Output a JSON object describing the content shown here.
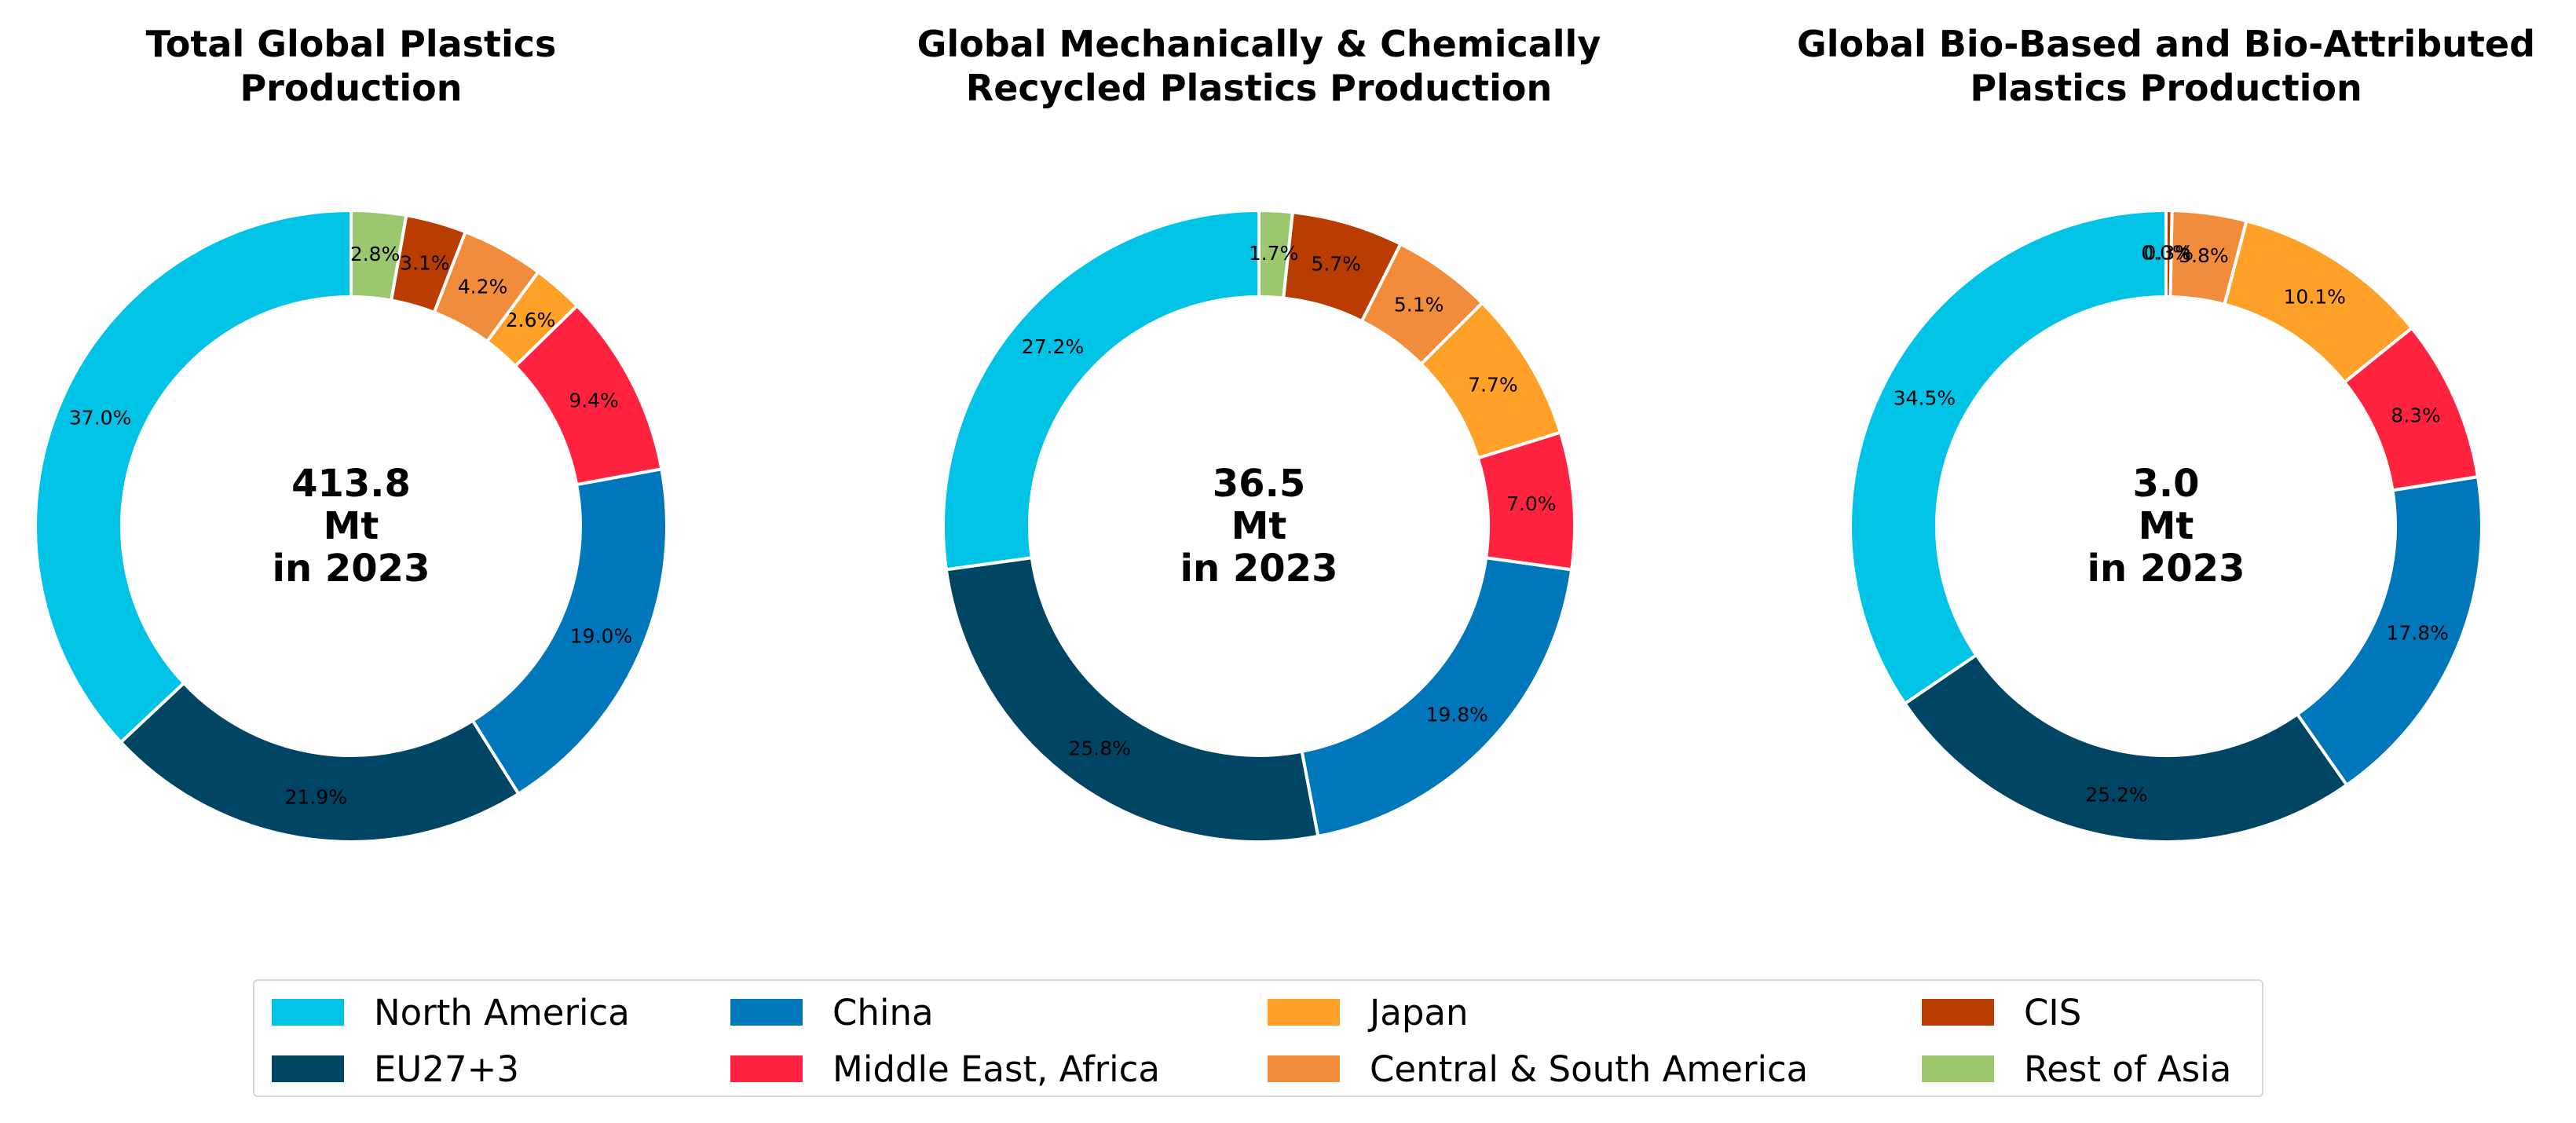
{
  "regions": [
    {
      "name": "North America",
      "color": "#00C3E6"
    },
    {
      "name": "EU27+3",
      "color": "#004563"
    },
    {
      "name": "China",
      "color": "#0077BB"
    },
    {
      "name": "Middle East, Africa",
      "color": "#FF2340"
    },
    {
      "name": "Japan",
      "color": "#FFA028"
    },
    {
      "name": "Central & South America",
      "color": "#F08C3C"
    },
    {
      "name": "CIS",
      "color": "#B93C00"
    },
    {
      "name": "Rest of Asia",
      "color": "#9BC86E"
    }
  ],
  "chart_data": [
    {
      "type": "pie",
      "title": "Total Global Plastics Production",
      "title_lines": [
        "Total Global Plastics",
        "Production"
      ],
      "center_lines": [
        "413.8",
        "Mt",
        "in 2023"
      ],
      "labels": [
        "North America",
        "EU27+3",
        "China",
        "Middle East, Africa",
        "Japan",
        "Central & South America",
        "CIS",
        "Rest of Asia"
      ],
      "values": [
        37.0,
        21.9,
        19.0,
        9.4,
        2.6,
        4.2,
        3.1,
        2.8
      ],
      "value_labels": [
        "37.0%",
        "21.9%",
        "19.0%",
        "9.4%",
        "2.6%",
        "4.2%",
        "3.1%",
        "2.8%"
      ]
    },
    {
      "type": "pie",
      "title": "Global Mechanically & Chemically Recycled Plastics Production",
      "title_lines": [
        "Global Mechanically & Chemically",
        "Recycled Plastics Production"
      ],
      "center_lines": [
        "36.5",
        "Mt",
        "in 2023"
      ],
      "labels": [
        "North America",
        "EU27+3",
        "China",
        "Middle East, Africa",
        "Japan",
        "Central & South America",
        "CIS",
        "Rest of Asia"
      ],
      "values": [
        27.2,
        25.8,
        19.8,
        7.0,
        7.7,
        5.1,
        5.7,
        1.7
      ],
      "value_labels": [
        "27.2%",
        "25.8%",
        "19.8%",
        "7.0%",
        "7.7%",
        "5.1%",
        "5.7%",
        "1.7%"
      ]
    },
    {
      "type": "pie",
      "title": "Global Bio-Based and Bio-Attributed Plastics Production",
      "title_lines": [
        "Global Bio-Based and Bio-Attributed",
        "Plastics Production"
      ],
      "center_lines": [
        "3.0",
        "Mt",
        "in 2023"
      ],
      "labels": [
        "North America",
        "EU27+3",
        "China",
        "Middle East, Africa",
        "Japan",
        "Central & South America",
        "CIS",
        "Rest of Asia"
      ],
      "values": [
        34.5,
        25.2,
        17.8,
        8.3,
        10.1,
        3.8,
        0.3,
        0.0
      ],
      "value_labels": [
        "34.5%",
        "25.2%",
        "17.8%",
        "8.3%",
        "10.1%",
        "3.8%",
        "0.3%",
        "0.0%"
      ]
    }
  ]
}
